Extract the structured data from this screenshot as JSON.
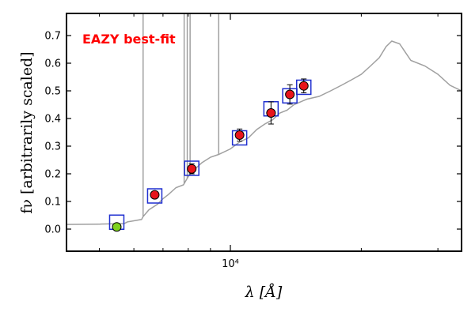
{
  "chart_data": {
    "type": "scatter",
    "annotation": "EAZY best-fit",
    "xlabel": "λ [Å]",
    "ylabel": "fν [arbitrarily scaled]",
    "x_scale": "log",
    "xlim": [
      4200,
      34000
    ],
    "ylim": [
      -0.08,
      0.78
    ],
    "x_ticks": [
      {
        "value": 10000,
        "label": "10⁴"
      }
    ],
    "y_ticks": [
      0.0,
      0.1,
      0.2,
      0.3,
      0.4,
      0.5,
      0.6,
      0.7
    ],
    "grid": false,
    "colors": {
      "sed": "#a0a0a0",
      "model_box": "#1f2fd0",
      "detection": "#e8141b",
      "highlight": "#7fd11f",
      "annotation": "#ff0000"
    },
    "sed_spectrum": {
      "x": [
        4200,
        5000,
        5700,
        5800,
        6000,
        6250,
        6300,
        6500,
        6800,
        7000,
        7200,
        7500,
        7800,
        8000,
        8200,
        8600,
        9000,
        9400,
        10000,
        10500,
        11000,
        11500,
        12000,
        12500,
        13000,
        13500,
        14000,
        15000,
        16000,
        17000,
        18000,
        19000,
        20000,
        21000,
        22000,
        22800,
        23500,
        24500,
        26000,
        28000,
        30000,
        32000,
        34000
      ],
      "y": [
        0.017,
        0.018,
        0.02,
        0.026,
        0.03,
        0.035,
        0.045,
        0.07,
        0.09,
        0.11,
        0.125,
        0.15,
        0.16,
        0.19,
        0.21,
        0.24,
        0.26,
        0.27,
        0.29,
        0.315,
        0.33,
        0.36,
        0.38,
        0.395,
        0.42,
        0.43,
        0.45,
        0.47,
        0.48,
        0.5,
        0.52,
        0.54,
        0.56,
        0.59,
        0.62,
        0.66,
        0.68,
        0.67,
        0.61,
        0.59,
        0.56,
        0.52,
        0.5
      ],
      "emission_lines": [
        {
          "x": 6300,
          "top": 0.78
        },
        {
          "x": 7830,
          "top": 0.78
        },
        {
          "x": 7960,
          "top": 0.78
        },
        {
          "x": 8080,
          "top": 0.78
        },
        {
          "x": 9400,
          "top": 0.78
        }
      ]
    },
    "model_fluxes": {
      "x": [
        5480,
        6700,
        8150,
        10500,
        12400,
        13700,
        14750
      ],
      "y": [
        0.025,
        0.12,
        0.22,
        0.33,
        0.435,
        0.482,
        0.513
      ]
    },
    "observed": {
      "x": [
        5480,
        6700,
        8150,
        10500,
        12400,
        13700,
        14750
      ],
      "y": [
        0.008,
        0.124,
        0.218,
        0.34,
        0.42,
        0.487,
        0.518
      ],
      "yerr": [
        0.012,
        0.012,
        0.018,
        0.022,
        0.04,
        0.035,
        0.025
      ],
      "highlight_index": 0
    }
  }
}
